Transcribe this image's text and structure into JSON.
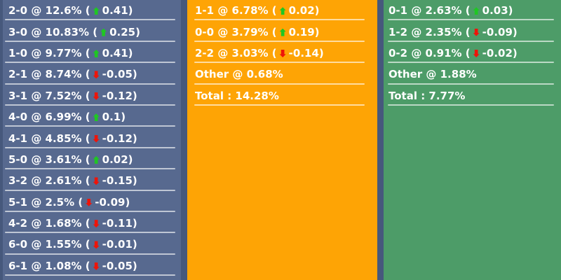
{
  "board": {
    "background": "#46587c",
    "text_color": "#ffffff",
    "divider_color": "rgba(255,255,255,0.62)",
    "arrow_up_color": "#1fc723",
    "arrow_down_color": "#ee1409",
    "columns": [
      {
        "name": "home-scores",
        "background": "#57698f",
        "rows": [
          {
            "text_before_arrow": "2-0 @ 12.6% (",
            "arrow": "up",
            "text_after_arrow": "0.41)"
          },
          {
            "text_before_arrow": "3-0 @ 10.83% (",
            "arrow": "up",
            "text_after_arrow": "0.25)"
          },
          {
            "text_before_arrow": "1-0 @ 9.77% (",
            "arrow": "up",
            "text_after_arrow": "0.41)"
          },
          {
            "text_before_arrow": "2-1 @ 8.74% (",
            "arrow": "down",
            "text_after_arrow": "-0.05)"
          },
          {
            "text_before_arrow": "3-1 @ 7.52% (",
            "arrow": "down",
            "text_after_arrow": "-0.12)"
          },
          {
            "text_before_arrow": "4-0 @ 6.99% (",
            "arrow": "up",
            "text_after_arrow": "0.1)"
          },
          {
            "text_before_arrow": "4-1 @ 4.85% (",
            "arrow": "down",
            "text_after_arrow": "-0.12)"
          },
          {
            "text_before_arrow": "5-0 @ 3.61% (",
            "arrow": "up",
            "text_after_arrow": "0.02)"
          },
          {
            "text_before_arrow": "3-2 @ 2.61% (",
            "arrow": "down",
            "text_after_arrow": "-0.15)"
          },
          {
            "text_before_arrow": "5-1 @ 2.5% (",
            "arrow": "down",
            "text_after_arrow": "-0.09)"
          },
          {
            "text_before_arrow": "4-2 @ 1.68% (",
            "arrow": "down",
            "text_after_arrow": "-0.11)"
          },
          {
            "text_before_arrow": "6-0 @ 1.55% (",
            "arrow": "down",
            "text_after_arrow": "-0.01)"
          },
          {
            "text_before_arrow": "6-1 @ 1.08% (",
            "arrow": "down",
            "text_after_arrow": "-0.05)"
          }
        ]
      },
      {
        "name": "draw-scores",
        "background": "#fea405",
        "rows": [
          {
            "text_before_arrow": "1-1 @ 6.78% (",
            "arrow": "up",
            "text_after_arrow": "0.02)"
          },
          {
            "text_before_arrow": "0-0 @ 3.79% (",
            "arrow": "up",
            "text_after_arrow": "0.19)"
          },
          {
            "text_before_arrow": "2-2 @ 3.03% (",
            "arrow": "down",
            "text_after_arrow": "-0.14)"
          },
          {
            "text": "Other @ 0.68%"
          },
          {
            "text": "Total : 14.28%"
          }
        ]
      },
      {
        "name": "away-scores",
        "background": "#4d9c68",
        "rows": [
          {
            "text_before_arrow": "0-1 @ 2.63% (",
            "arrow": "up",
            "text_after_arrow": "0.03)"
          },
          {
            "text_before_arrow": "1-2 @ 2.35% (",
            "arrow": "down",
            "text_after_arrow": "-0.09)"
          },
          {
            "text_before_arrow": "0-2 @ 0.91% (",
            "arrow": "down",
            "text_after_arrow": "-0.02)"
          },
          {
            "text": "Other @ 1.88%"
          },
          {
            "text": "Total : 7.77%"
          }
        ]
      }
    ]
  }
}
